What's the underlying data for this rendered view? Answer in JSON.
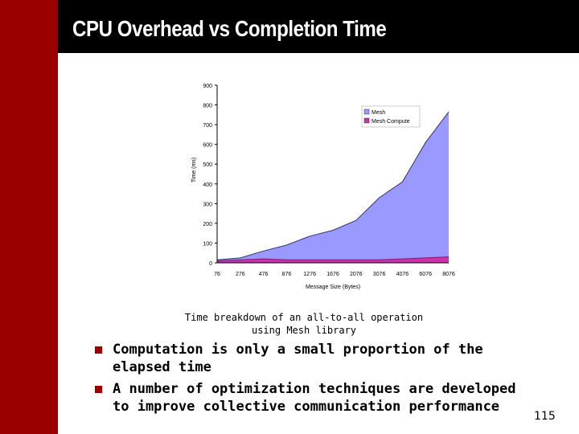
{
  "slide": {
    "title": "CPU Overhead vs Completion Time",
    "caption_line1": "Time breakdown of an all-to-all operation",
    "caption_line2": "using Mesh library",
    "bullets": [
      {
        "text": "Computation is only a small proportion of the elapsed time"
      },
      {
        "text": "A number of optimization techniques are developed to improve collective communication performance"
      }
    ],
    "page_number": "115",
    "colors": {
      "title_band": "#000000",
      "side_bar": "#9b0000",
      "bullet": "#9b0000"
    }
  },
  "chart_data": {
    "type": "area",
    "title": "",
    "xlabel": "Message Size (Bytes)",
    "ylabel": "Time (ms)",
    "ylim": [
      0,
      900
    ],
    "yticks": [
      "0",
      "100",
      "200",
      "300",
      "400",
      "500",
      "600",
      "700",
      "800",
      "900"
    ],
    "xticks": [
      "76",
      "276",
      "476",
      "876",
      "1276",
      "1676",
      "2076",
      "3076",
      "4076",
      "6076",
      "8076"
    ],
    "x": [
      "76",
      "276",
      "476",
      "876",
      "1276",
      "1676",
      "2076",
      "3076",
      "4076",
      "6076",
      "8076"
    ],
    "grid": false,
    "legend_position": "top-right",
    "series": [
      {
        "name": "Mesh",
        "color": "#9999ff",
        "values": [
          15,
          25,
          60,
          90,
          135,
          165,
          215,
          330,
          410,
          610,
          765
        ]
      },
      {
        "name": "Mesh Compute",
        "color": "#cc33aa",
        "values": [
          10,
          15,
          20,
          15,
          15,
          15,
          15,
          15,
          20,
          25,
          30
        ]
      }
    ]
  }
}
